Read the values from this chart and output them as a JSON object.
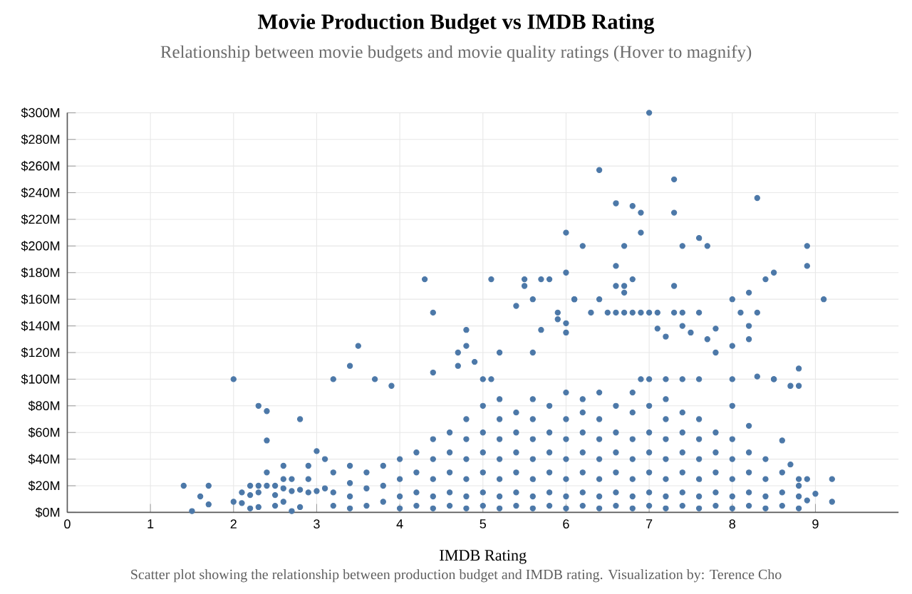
{
  "chart_data": {
    "type": "scatter",
    "title": "Movie Production Budget vs IMDB Rating",
    "subtitle": "Relationship between movie budgets and movie quality ratings (Hover to magnify)",
    "xlabel": "IMDB Rating",
    "annotations": [
      "Scatter plot showing the relationship between production budget and IMDB rating. Visualization by: Terence Cho"
    ],
    "xlim": [
      0,
      10
    ],
    "xticks": [
      0,
      1,
      2,
      3,
      4,
      5,
      6,
      7,
      8,
      9
    ],
    "ylim": [
      0,
      300
    ],
    "yticks": [
      {
        "value": 0,
        "label": "$0M"
      },
      {
        "value": 20,
        "label": "$20M"
      },
      {
        "value": 40,
        "label": "$40M"
      },
      {
        "value": 60,
        "label": "$60M"
      },
      {
        "value": 80,
        "label": "$80M"
      },
      {
        "value": 100,
        "label": "$100M"
      },
      {
        "value": 120,
        "label": "$120M"
      },
      {
        "value": 140,
        "label": "$140M"
      },
      {
        "value": 160,
        "label": "$160M"
      },
      {
        "value": 180,
        "label": "$180M"
      },
      {
        "value": 200,
        "label": "$200M"
      },
      {
        "value": 220,
        "label": "$220M"
      },
      {
        "value": 240,
        "label": "$240M"
      },
      {
        "value": 260,
        "label": "$260M"
      },
      {
        "value": 280,
        "label": "$280M"
      },
      {
        "value": 300,
        "label": "$300M"
      }
    ],
    "grid": true,
    "series": [
      {
        "color": "#4c78a8",
        "x": [
          1.4,
          1.5,
          1.6,
          1.7,
          1.7,
          2,
          2,
          2.1,
          2.1,
          2.2,
          2.2,
          2.2,
          2.3,
          2.3,
          2.3,
          2.3,
          2.4,
          2.4,
          2.4,
          2.4,
          2.5,
          2.5,
          2.5,
          2.6,
          2.6,
          2.6,
          2.6,
          2.7,
          2.7,
          2.7,
          2.8,
          2.8,
          2.8,
          2.9,
          2.9,
          2.9,
          3,
          3,
          3.1,
          3.1,
          4.3,
          4.4,
          3.5,
          3.4,
          3.2,
          3.7,
          3.9,
          4.4,
          4.8,
          4.8,
          4.7,
          4.7,
          4.9,
          5.1,
          5.2,
          5.4,
          5.5,
          5.5,
          5.6,
          5.7,
          5.8,
          5.7,
          5.6,
          5.9,
          5.9,
          6,
          6,
          6.2,
          6.1,
          6,
          6,
          5,
          5.1,
          7,
          6.4,
          7.3,
          8.3,
          6.6,
          6.8,
          6.9,
          7.3,
          6.9,
          7.6,
          7.7,
          7.4,
          6.7,
          8.9,
          8.9,
          8.5,
          8.4,
          8.2,
          9.1,
          8,
          6.1,
          6.4,
          6.6,
          6.6,
          6.7,
          6.7,
          6.8,
          7.3,
          6.3,
          6.5,
          6.6,
          6.7,
          6.8,
          6.9,
          7,
          7.1,
          7.3,
          7.4,
          7.6,
          8.1,
          8.3,
          7.1,
          7.2,
          7.4,
          7.5,
          7.8,
          7.7,
          7.8,
          8,
          8.2,
          8.2,
          6.9,
          7,
          7.2,
          7.4,
          7.6,
          8,
          8.5,
          8.8,
          8.7,
          8.8,
          8.5,
          8.3,
          8.6,
          8.7,
          8.8,
          8.9,
          9.2,
          9,
          9.2,
          8.9,
          3.2,
          3.2,
          3.2,
          3.4,
          3.4,
          3.4,
          3.4,
          3.6,
          3.6,
          3.6,
          3.8,
          3.8,
          3.8,
          4,
          4,
          4,
          4,
          4.2,
          4.2,
          4.2,
          4.2,
          4.4,
          4.4,
          4.4,
          4.4,
          4.4,
          4.6,
          4.6,
          4.6,
          4.6,
          4.6,
          4.8,
          4.8,
          4.8,
          4.8,
          4.8,
          4.8,
          5,
          5,
          5,
          5,
          5,
          5,
          5.2,
          5.2,
          5.2,
          5.2,
          5.2,
          5.2,
          5.2,
          5.4,
          5.4,
          5.4,
          5.4,
          5.4,
          5.4,
          5.6,
          5.6,
          5.6,
          5.6,
          5.6,
          5.6,
          5.6,
          5.8,
          5.8,
          5.8,
          5.8,
          5.8,
          5.8,
          6,
          6,
          6,
          6,
          6,
          6,
          6,
          6.2,
          6.2,
          6.2,
          6.2,
          6.2,
          6.2,
          6.2,
          6.4,
          6.4,
          6.4,
          6.4,
          6.4,
          6.4,
          6.4,
          6.6,
          6.6,
          6.6,
          6.6,
          6.6,
          6.6,
          6.8,
          6.8,
          6.8,
          6.8,
          6.8,
          6.8,
          6.8,
          7,
          7,
          7,
          7,
          7,
          7,
          7.2,
          7.2,
          7.2,
          7.2,
          7.2,
          7.2,
          7.2,
          7.4,
          7.4,
          7.4,
          7.4,
          7.4,
          7.4,
          7.6,
          7.6,
          7.6,
          7.6,
          7.6,
          7.6,
          7.8,
          7.8,
          7.8,
          7.8,
          7.8,
          8,
          8,
          8,
          8,
          8,
          8,
          8.2,
          8.2,
          8.2,
          8.2,
          8.2,
          8.4,
          8.4,
          8.4,
          8.4,
          8.6,
          8.6,
          8.6,
          8.8,
          8.8,
          8.8
        ],
        "values": [
          20,
          1,
          12,
          20,
          6,
          100,
          8,
          15,
          7,
          20,
          13,
          3,
          80,
          20,
          15,
          4,
          76,
          54,
          30,
          20,
          20,
          13,
          5,
          35,
          25,
          18,
          8,
          25,
          16,
          1,
          70,
          17,
          4,
          35,
          25,
          15,
          46,
          16,
          40,
          18,
          175,
          150,
          125,
          110,
          100,
          100,
          95,
          105,
          137,
          125,
          120,
          110,
          113,
          175,
          120,
          155,
          175,
          170,
          160,
          175,
          175,
          137,
          120,
          150,
          145,
          210,
          180,
          200,
          160,
          142,
          135,
          100,
          100,
          300,
          257,
          250,
          236,
          232,
          230,
          225,
          225,
          210,
          206,
          200,
          200,
          200,
          200,
          185,
          180,
          175,
          165,
          160,
          160,
          160,
          160,
          185,
          170,
          170,
          165,
          175,
          170,
          150,
          150,
          150,
          150,
          150,
          150,
          150,
          150,
          150,
          150,
          150,
          150,
          150,
          138,
          132,
          140,
          135,
          138,
          130,
          120,
          125,
          140,
          130,
          100,
          100,
          100,
          100,
          100,
          100,
          100,
          108,
          95,
          95,
          100,
          102,
          54,
          36,
          25,
          25,
          25,
          14,
          8,
          9,
          5,
          15,
          30,
          3,
          12,
          22,
          35,
          5,
          18,
          30,
          8,
          20,
          35,
          3,
          12,
          25,
          40,
          5,
          15,
          30,
          45,
          3,
          12,
          25,
          40,
          55,
          5,
          15,
          30,
          45,
          60,
          3,
          12,
          25,
          40,
          55,
          70,
          5,
          15,
          30,
          45,
          60,
          80,
          3,
          12,
          25,
          40,
          55,
          70,
          85,
          5,
          15,
          30,
          45,
          60,
          75,
          3,
          12,
          25,
          40,
          55,
          70,
          85,
          5,
          15,
          30,
          45,
          60,
          80,
          3,
          12,
          25,
          40,
          55,
          70,
          90,
          5,
          15,
          30,
          45,
          60,
          75,
          85,
          3,
          12,
          25,
          40,
          55,
          70,
          90,
          5,
          15,
          30,
          45,
          60,
          80,
          3,
          12,
          25,
          40,
          55,
          75,
          90,
          5,
          15,
          30,
          45,
          60,
          80,
          3,
          12,
          25,
          40,
          55,
          70,
          85,
          5,
          15,
          30,
          45,
          60,
          75,
          3,
          12,
          25,
          40,
          55,
          70,
          5,
          15,
          30,
          45,
          60,
          3,
          12,
          25,
          40,
          55,
          80,
          5,
          15,
          30,
          45,
          65,
          3,
          12,
          25,
          40,
          5,
          15,
          30,
          3,
          12,
          20
        ]
      }
    ]
  }
}
